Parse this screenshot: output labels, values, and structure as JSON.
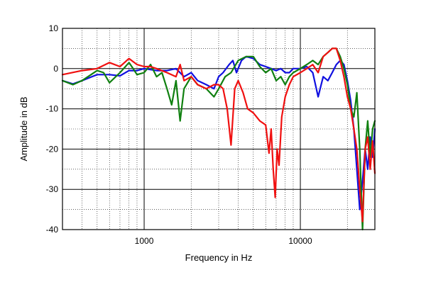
{
  "chart_data": {
    "type": "line",
    "xlabel": "Frequency in Hz",
    "ylabel": "Amplitude in dB",
    "xscale": "log",
    "xlim": [
      300,
      30000
    ],
    "ylim": [
      -40,
      10
    ],
    "grid": true,
    "x_tick_labels": [
      {
        "value": 1000,
        "label": "1000"
      },
      {
        "value": 10000,
        "label": "10000"
      }
    ],
    "y_ticks": [
      10,
      0,
      -10,
      -20,
      -30,
      -40
    ],
    "series": [
      {
        "color": "#1010e0",
        "points": [
          [
            300,
            -3
          ],
          [
            350,
            -3.8
          ],
          [
            400,
            -3
          ],
          [
            500,
            -1.5
          ],
          [
            600,
            -1.5
          ],
          [
            700,
            -1.8
          ],
          [
            800,
            -0.5
          ],
          [
            900,
            -0.5
          ],
          [
            1000,
            0
          ],
          [
            1200,
            -0.5
          ],
          [
            1400,
            -0.5
          ],
          [
            1600,
            0
          ],
          [
            1800,
            -2
          ],
          [
            2000,
            -1
          ],
          [
            2200,
            -3
          ],
          [
            2500,
            -4
          ],
          [
            2800,
            -5
          ],
          [
            3000,
            -2
          ],
          [
            3200,
            -1
          ],
          [
            3500,
            1
          ],
          [
            3700,
            2
          ],
          [
            3900,
            -1
          ],
          [
            4200,
            2
          ],
          [
            4500,
            3
          ],
          [
            5000,
            2.5
          ],
          [
            5500,
            1
          ],
          [
            6000,
            0.5
          ],
          [
            6500,
            0
          ],
          [
            7000,
            -0.5
          ],
          [
            7500,
            0
          ],
          [
            8000,
            -1
          ],
          [
            8500,
            -1
          ],
          [
            9000,
            0
          ],
          [
            10000,
            0
          ],
          [
            11000,
            0.5
          ],
          [
            12000,
            -1
          ],
          [
            13000,
            -7
          ],
          [
            14000,
            -2
          ],
          [
            15000,
            -3
          ],
          [
            16000,
            -1
          ],
          [
            17000,
            1
          ],
          [
            18000,
            2
          ],
          [
            19000,
            1
          ],
          [
            20000,
            -3
          ],
          [
            21000,
            -8
          ],
          [
            22000,
            -15
          ],
          [
            23000,
            -25
          ],
          [
            24000,
            -35
          ],
          [
            25000,
            -28
          ],
          [
            26000,
            -20
          ],
          [
            27000,
            -25
          ],
          [
            28000,
            -17
          ],
          [
            29000,
            -22
          ],
          [
            30000,
            -15
          ]
        ]
      },
      {
        "color": "#108010",
        "points": [
          [
            300,
            -3
          ],
          [
            350,
            -4
          ],
          [
            400,
            -3
          ],
          [
            500,
            -0.5
          ],
          [
            550,
            -1
          ],
          [
            600,
            -3.5
          ],
          [
            700,
            -1
          ],
          [
            800,
            1.5
          ],
          [
            850,
            0
          ],
          [
            900,
            -1.5
          ],
          [
            1000,
            -1
          ],
          [
            1100,
            1
          ],
          [
            1200,
            -2
          ],
          [
            1300,
            -1
          ],
          [
            1400,
            -5
          ],
          [
            1500,
            -9
          ],
          [
            1600,
            -3
          ],
          [
            1700,
            -13
          ],
          [
            1800,
            -5
          ],
          [
            2000,
            -2
          ],
          [
            2200,
            -4
          ],
          [
            2500,
            -5
          ],
          [
            2800,
            -7
          ],
          [
            3000,
            -5
          ],
          [
            3300,
            -2
          ],
          [
            3600,
            -1
          ],
          [
            4000,
            2
          ],
          [
            4500,
            3
          ],
          [
            5000,
            3
          ],
          [
            5500,
            0.5
          ],
          [
            6000,
            -1
          ],
          [
            6500,
            0
          ],
          [
            7000,
            -3
          ],
          [
            7500,
            -2
          ],
          [
            8000,
            -4
          ],
          [
            8500,
            -2
          ],
          [
            9000,
            -1
          ],
          [
            10000,
            0
          ],
          [
            11000,
            1
          ],
          [
            12000,
            2
          ],
          [
            13000,
            1
          ],
          [
            14000,
            3
          ],
          [
            15000,
            4
          ],
          [
            16000,
            5
          ],
          [
            17000,
            5
          ],
          [
            18000,
            3
          ],
          [
            19000,
            0
          ],
          [
            20000,
            -4
          ],
          [
            21000,
            -10
          ],
          [
            22000,
            -12
          ],
          [
            23000,
            -6
          ],
          [
            24000,
            -20
          ],
          [
            25000,
            -40
          ],
          [
            26000,
            -20
          ],
          [
            27000,
            -13
          ],
          [
            28000,
            -22
          ],
          [
            29000,
            -15
          ],
          [
            30000,
            -13
          ]
        ]
      },
      {
        "color": "#f01010",
        "points": [
          [
            300,
            -1.5
          ],
          [
            400,
            -0.5
          ],
          [
            500,
            0
          ],
          [
            600,
            1.5
          ],
          [
            700,
            0.5
          ],
          [
            800,
            2.5
          ],
          [
            900,
            1
          ],
          [
            1000,
            0.5
          ],
          [
            1100,
            0.5
          ],
          [
            1200,
            0
          ],
          [
            1400,
            -1
          ],
          [
            1600,
            -2
          ],
          [
            1700,
            1
          ],
          [
            1800,
            -3
          ],
          [
            2000,
            -2
          ],
          [
            2200,
            -4
          ],
          [
            2500,
            -5
          ],
          [
            2800,
            -4
          ],
          [
            3000,
            -4
          ],
          [
            3200,
            -5
          ],
          [
            3400,
            -10
          ],
          [
            3600,
            -19
          ],
          [
            3800,
            -5
          ],
          [
            4000,
            -3
          ],
          [
            4300,
            -6
          ],
          [
            4600,
            -10
          ],
          [
            5000,
            -11
          ],
          [
            5500,
            -13
          ],
          [
            6000,
            -14
          ],
          [
            6300,
            -21
          ],
          [
            6500,
            -15
          ],
          [
            6700,
            -25
          ],
          [
            6900,
            -32
          ],
          [
            7100,
            -20
          ],
          [
            7300,
            -24
          ],
          [
            7600,
            -12
          ],
          [
            8000,
            -7
          ],
          [
            8500,
            -4
          ],
          [
            9000,
            -2
          ],
          [
            10000,
            -1
          ],
          [
            11000,
            0
          ],
          [
            12000,
            1
          ],
          [
            13000,
            -1
          ],
          [
            14000,
            3
          ],
          [
            15000,
            4
          ],
          [
            16000,
            5
          ],
          [
            17000,
            5
          ],
          [
            18000,
            2
          ],
          [
            19000,
            -2
          ],
          [
            20000,
            -7
          ],
          [
            21000,
            -10
          ],
          [
            22000,
            -15
          ],
          [
            23000,
            -20
          ],
          [
            24000,
            -30
          ],
          [
            25000,
            -38
          ],
          [
            26000,
            -20
          ],
          [
            27000,
            -17
          ],
          [
            28000,
            -25
          ],
          [
            29000,
            -18
          ],
          [
            30000,
            -26
          ]
        ]
      }
    ]
  }
}
